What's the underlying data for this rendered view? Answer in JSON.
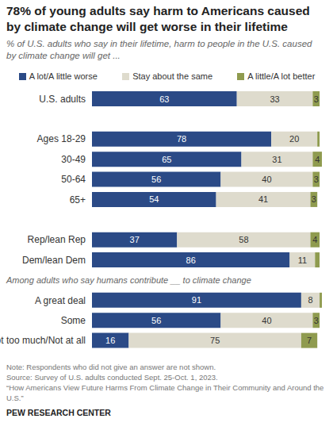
{
  "chart_data": {
    "type": "bar",
    "orientation": "horizontal",
    "stacked": true,
    "data_labels": true,
    "tick_labels": "y",
    "grid": false,
    "title": "78% of young adults say harm to Americans caused by climate change will get worse in their lifetime",
    "subtitle": "% of U.S. adults who say in their lifetime, harm to people in the U.S. caused by climate change will get ...",
    "categories": [
      "U.S. adults",
      null,
      "Ages 18-29",
      "30-49",
      "50-64",
      "65+",
      null,
      "Rep/lean Rep",
      "Dem/lean Dem",
      null,
      "A great deal",
      "Some",
      "Not too much/Not at all"
    ],
    "annotation": {
      "text": "Among adults who say humans contribute __ to climate change",
      "before": "A great deal"
    },
    "xlim": [
      0,
      100
    ],
    "series": [
      {
        "name": "A lot/A little worse",
        "color": "#2b4a86",
        "values": [
          63,
          null,
          78,
          65,
          56,
          54,
          null,
          37,
          86,
          null,
          91,
          56,
          16
        ],
        "value_labels": [
          "63",
          null,
          "78",
          "65",
          "56",
          "54",
          null,
          "37",
          "86",
          null,
          "91",
          "56",
          "16"
        ]
      },
      {
        "name": "Stay about the same",
        "color": "#dedbcd",
        "values": [
          33,
          null,
          20,
          31,
          40,
          41,
          null,
          58,
          11,
          null,
          8,
          40,
          75
        ],
        "value_labels": [
          "33",
          null,
          "20",
          "31",
          "40",
          "41",
          null,
          "58",
          "11",
          null,
          "8",
          "40",
          "75"
        ]
      },
      {
        "name": "A little/A lot better",
        "color": "#8f9b4f",
        "values": [
          3,
          null,
          1,
          4,
          3,
          3,
          null,
          4,
          2,
          null,
          1,
          3,
          7
        ],
        "value_labels": [
          "3",
          null,
          null,
          "4",
          "3",
          "3",
          null,
          "4",
          null,
          null,
          null,
          "3",
          "7"
        ]
      }
    ],
    "notes": [
      "Note: Respondents who did not give an answer are not shown.",
      "Source: Survey of U.S. adults conducted Sept. 25-Oct. 1, 2023.",
      "“How Americans View Future Harms From Climate Change in Their Community and Around the U.S.”"
    ],
    "source_org": "PEW RESEARCH CENTER"
  }
}
